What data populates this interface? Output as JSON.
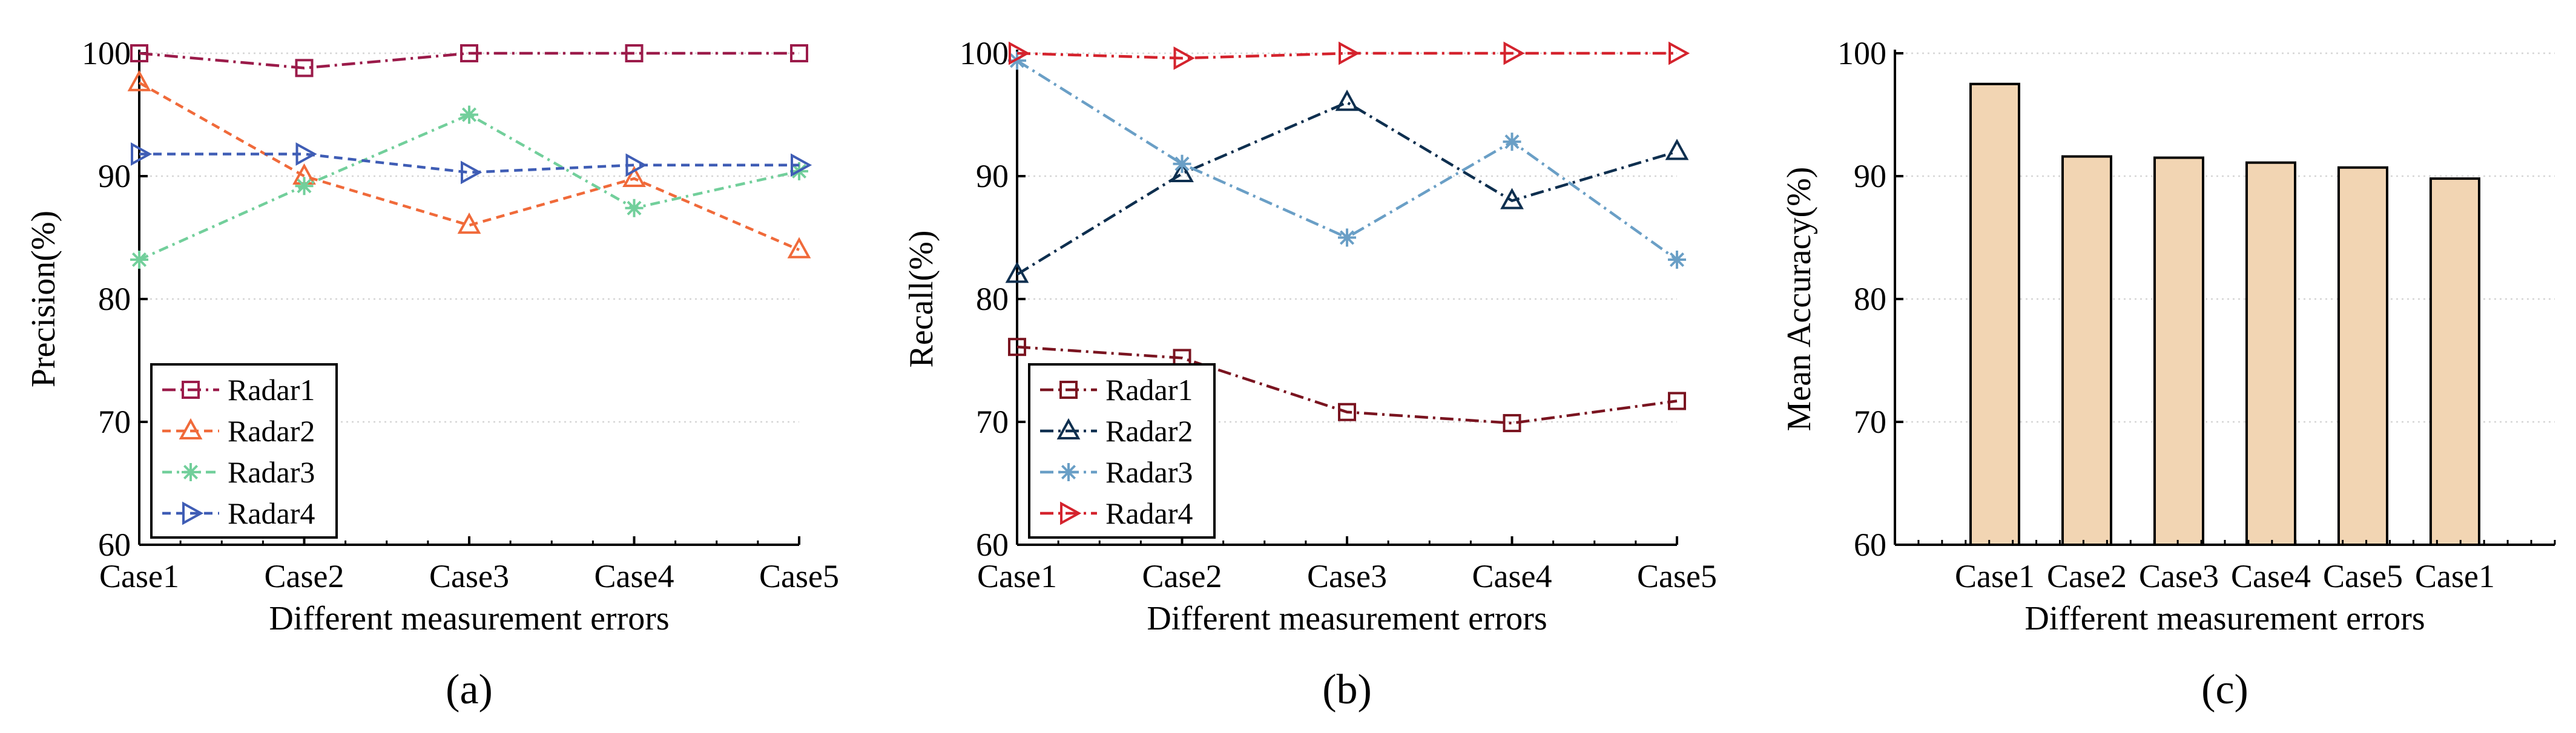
{
  "chart_data": [
    {
      "type": "line",
      "panel_label": "(a)",
      "xlabel": "Different measurement errors",
      "ylabel": "Precision(%)",
      "categories": [
        "Case1",
        "Case2",
        "Case3",
        "Case4",
        "Case5"
      ],
      "ylim": [
        60,
        100
      ],
      "yticks": [
        60,
        70,
        80,
        90,
        100
      ],
      "grid": true,
      "legend": "lower-left",
      "series": [
        {
          "name": "Radar1",
          "color": "#9b1b4a",
          "marker": "square",
          "dash": "long-dash-dot",
          "values": [
            100,
            98.8,
            100,
            100,
            100
          ]
        },
        {
          "name": "Radar2",
          "color": "#f06a3a",
          "marker": "triangle-up",
          "dash": "dashed",
          "values": [
            97.6,
            90,
            86,
            89.8,
            84
          ]
        },
        {
          "name": "Radar3",
          "color": "#72cf9b",
          "marker": "asterisk",
          "dash": "dash-dot",
          "values": [
            83.2,
            89.2,
            95,
            87.4,
            90.4
          ]
        },
        {
          "name": "Radar4",
          "color": "#3f5db5",
          "marker": "triangle-right",
          "dash": "dashed",
          "values": [
            91.8,
            91.8,
            90.3,
            90.9,
            90.9
          ]
        }
      ]
    },
    {
      "type": "line",
      "panel_label": "(b)",
      "xlabel": "Different measurement errors",
      "ylabel": "Recall(%)",
      "categories": [
        "Case1",
        "Case2",
        "Case3",
        "Case4",
        "Case5"
      ],
      "ylim": [
        60,
        100
      ],
      "yticks": [
        60,
        70,
        80,
        90,
        100
      ],
      "grid": true,
      "legend": "lower-left",
      "series": [
        {
          "name": "Radar1",
          "color": "#7a1420",
          "marker": "square",
          "dash": "long-dash-dot",
          "values": [
            76.1,
            75.2,
            70.8,
            69.9,
            71.7
          ]
        },
        {
          "name": "Radar2",
          "color": "#0e2f4f",
          "marker": "triangle-up",
          "dash": "long-dash-dot",
          "values": [
            82,
            90.2,
            96,
            88,
            92
          ]
        },
        {
          "name": "Radar3",
          "color": "#6a9fc6",
          "marker": "asterisk",
          "dash": "long-dash-dot",
          "values": [
            99.4,
            91,
            85,
            92.8,
            83.2
          ]
        },
        {
          "name": "Radar4",
          "color": "#d4232d",
          "marker": "triangle-right",
          "dash": "long-dash-dot",
          "values": [
            100,
            99.6,
            100,
            100,
            100
          ]
        }
      ]
    },
    {
      "type": "bar",
      "panel_label": "(c)",
      "xlabel": "Different measurement errors",
      "ylabel": "Mean Accuracy(%)",
      "categories": [
        "Case1",
        "Case2",
        "Case3",
        "Case4",
        "Case5",
        "Case1"
      ],
      "values": [
        97.5,
        91.6,
        91.5,
        91.1,
        90.7,
        89.8
      ],
      "ylim": [
        60,
        100
      ],
      "yticks": [
        60,
        70,
        80,
        90,
        100
      ],
      "grid": true,
      "bar_color": "#f2d5b3"
    }
  ]
}
